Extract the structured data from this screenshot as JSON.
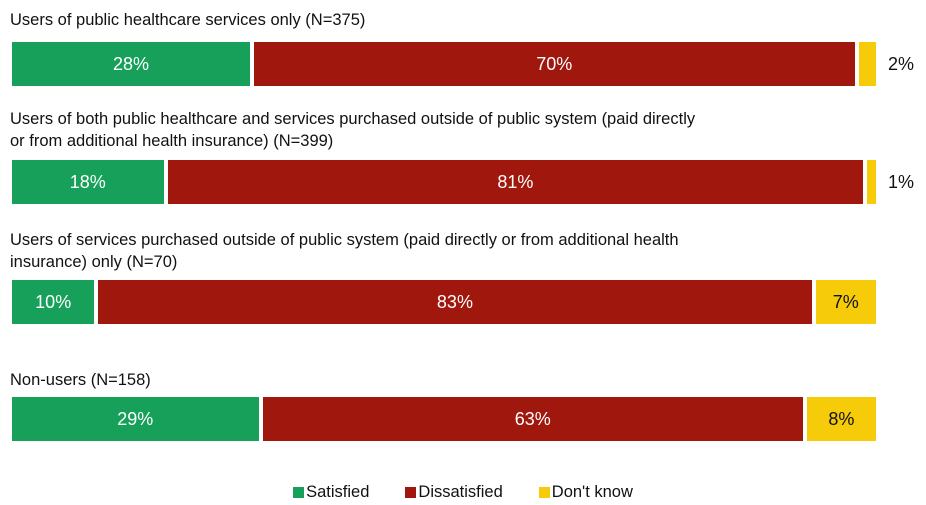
{
  "colors": {
    "satisfied": "#16A05A",
    "dissatisfied": "#A0170D",
    "dont_know": "#F5CB0A"
  },
  "legend": [
    "Satisfied",
    "Dissatisfied",
    "Don't know"
  ],
  "chart_data": {
    "type": "bar",
    "orientation": "horizontal",
    "stacked": true,
    "percent": true,
    "categories": [
      "Users of public healthcare services only (N=375)",
      "Users of both public healthcare and services purchased outside of public system (paid directly\nor from additional health insurance)  (N=399)",
      "Users of services purchased outside of public system (paid directly or from additional health\ninsurance) only (N=70)",
      "Non-users (N=158)"
    ],
    "series": [
      {
        "name": "Satisfied",
        "values": [
          28,
          18,
          10,
          29
        ]
      },
      {
        "name": "Dissatisfied",
        "values": [
          70,
          81,
          83,
          63
        ]
      },
      {
        "name": "Don't know",
        "values": [
          2,
          1,
          7,
          8
        ]
      }
    ],
    "data_labels": [
      [
        "28%",
        "70%",
        "2%"
      ],
      [
        "18%",
        "81%",
        "1%"
      ],
      [
        "10%",
        "83%",
        "7%"
      ],
      [
        "29%",
        "63%",
        "8%"
      ]
    ],
    "legend_position": "bottom"
  }
}
